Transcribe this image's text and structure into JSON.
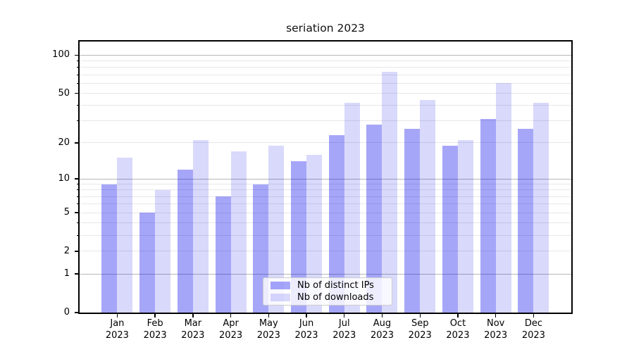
{
  "chart_data": {
    "type": "bar",
    "title": "seriation 2023",
    "categories": [
      "Jan",
      "Feb",
      "Mar",
      "Apr",
      "May",
      "Jun",
      "Jul",
      "Aug",
      "Sep",
      "Oct",
      "Nov",
      "Dec"
    ],
    "year_label": "2023",
    "series": [
      {
        "name": "Nb of distinct IPs",
        "color": "rgba(0,0,238,0.35)",
        "values": [
          9,
          5,
          12,
          7,
          9,
          14,
          23,
          28,
          26,
          19,
          31,
          26
        ]
      },
      {
        "name": "Nb of downloads",
        "color": "rgba(0,0,238,0.15)",
        "values": [
          15,
          8,
          21,
          17,
          19,
          16,
          42,
          74,
          44,
          21,
          60,
          42
        ]
      }
    ],
    "yscale": "log1p",
    "ylim": [
      0,
      128
    ],
    "yticks": [
      0,
      1,
      2,
      5,
      10,
      20,
      50,
      100
    ],
    "major_gridlines": [
      1,
      10,
      100
    ],
    "minor_gridlines": [
      2,
      3,
      4,
      5,
      6,
      7,
      8,
      9,
      20,
      30,
      40,
      50,
      60,
      70,
      80,
      90
    ],
    "grid": true,
    "legend_position": "lower center",
    "colors": {
      "major_grid": "#b6b6b6",
      "minor_grid": "#e7e7e7",
      "spine": "#000000",
      "background": "#ffffff"
    }
  }
}
